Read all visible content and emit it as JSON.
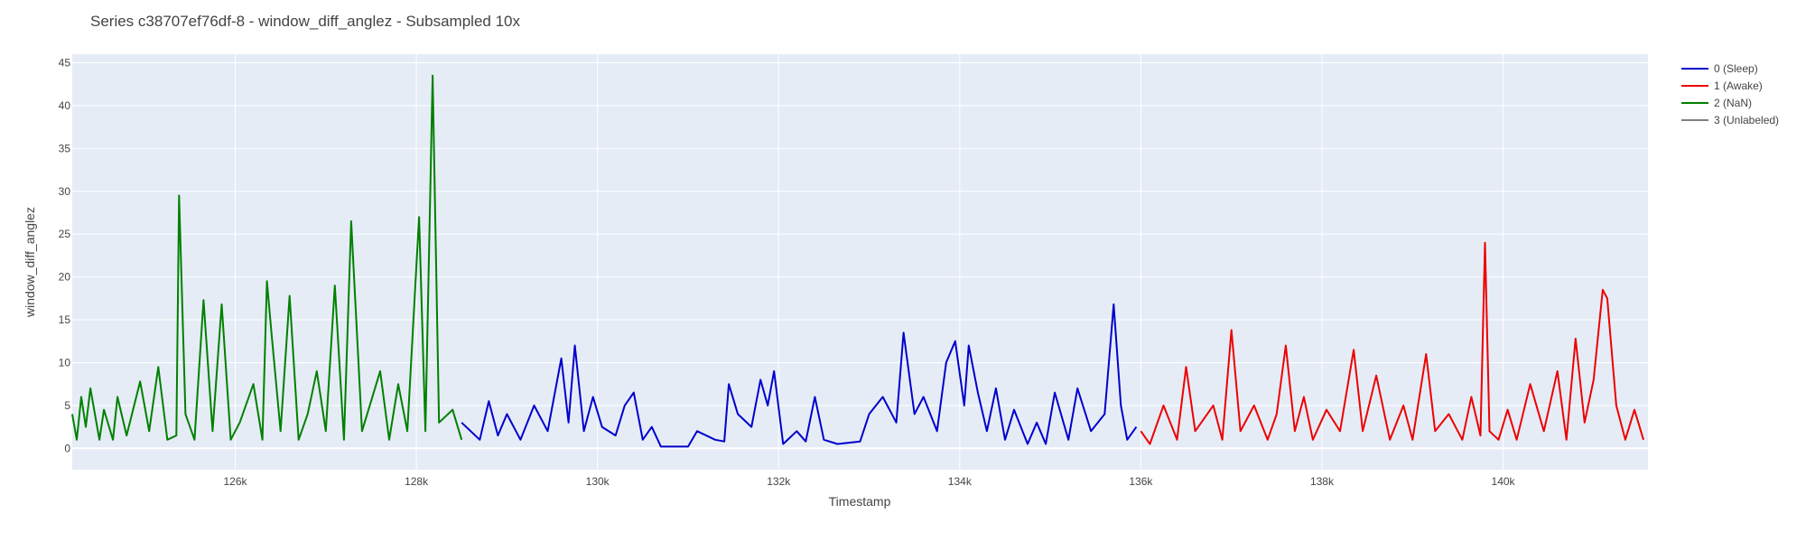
{
  "chart_data": {
    "type": "line",
    "title": "Series c38707ef76df-8 - window_diff_anglez - Subsampled 10x",
    "xlabel": "Timestamp",
    "ylabel": "window_diff_anglez",
    "xlim": [
      124200,
      141600
    ],
    "ylim": [
      -2.5,
      46
    ],
    "x_ticks": [
      126000,
      128000,
      130000,
      132000,
      134000,
      136000,
      138000,
      140000
    ],
    "x_tick_labels": [
      "126k",
      "128k",
      "130k",
      "132k",
      "134k",
      "136k",
      "138k",
      "140k"
    ],
    "y_ticks": [
      0,
      5,
      10,
      15,
      20,
      25,
      30,
      35,
      40,
      45
    ],
    "y_tick_labels": [
      "0",
      "5",
      "10",
      "15",
      "20",
      "25",
      "30",
      "35",
      "40",
      "45"
    ],
    "grid": true,
    "legend_position": "top-right",
    "series": [
      {
        "name": "0 (Sleep)",
        "color": "#0000cc",
        "points": [
          [
            128500,
            3
          ],
          [
            128700,
            1
          ],
          [
            128800,
            5.5
          ],
          [
            128900,
            1.5
          ],
          [
            129000,
            4
          ],
          [
            129150,
            1
          ],
          [
            129300,
            5
          ],
          [
            129450,
            2
          ],
          [
            129600,
            10.5
          ],
          [
            129680,
            3
          ],
          [
            129750,
            12
          ],
          [
            129850,
            2
          ],
          [
            129950,
            6
          ],
          [
            130050,
            2.5
          ],
          [
            130200,
            1.5
          ],
          [
            130300,
            5
          ],
          [
            130400,
            6.5
          ],
          [
            130500,
            1
          ],
          [
            130600,
            2.5
          ],
          [
            130700,
            0.2
          ],
          [
            131000,
            0.2
          ],
          [
            131100,
            2
          ],
          [
            131300,
            1
          ],
          [
            131400,
            0.8
          ],
          [
            131450,
            7.5
          ],
          [
            131550,
            4
          ],
          [
            131700,
            2.5
          ],
          [
            131800,
            8
          ],
          [
            131880,
            5
          ],
          [
            131950,
            9
          ],
          [
            132050,
            0.5
          ],
          [
            132200,
            2
          ],
          [
            132300,
            0.8
          ],
          [
            132400,
            6
          ],
          [
            132500,
            1
          ],
          [
            132650,
            0.5
          ],
          [
            132900,
            0.8
          ],
          [
            133000,
            4
          ],
          [
            133150,
            6
          ],
          [
            133300,
            3
          ],
          [
            133380,
            13.5
          ],
          [
            133500,
            4
          ],
          [
            133600,
            6
          ],
          [
            133750,
            2
          ],
          [
            133850,
            10
          ],
          [
            133950,
            12.5
          ],
          [
            134050,
            5
          ],
          [
            134100,
            12
          ],
          [
            134200,
            6.5
          ],
          [
            134300,
            2
          ],
          [
            134400,
            7
          ],
          [
            134500,
            1
          ],
          [
            134600,
            4.5
          ],
          [
            134750,
            0.5
          ],
          [
            134850,
            3
          ],
          [
            134950,
            0.5
          ],
          [
            135050,
            6.5
          ],
          [
            135200,
            1
          ],
          [
            135300,
            7
          ],
          [
            135450,
            2
          ],
          [
            135600,
            4
          ],
          [
            135700,
            16.8
          ],
          [
            135780,
            5
          ],
          [
            135850,
            1
          ],
          [
            135950,
            2.5
          ]
        ]
      },
      {
        "name": "1 (Awake)",
        "color": "#ee0000",
        "points": [
          [
            136000,
            2
          ],
          [
            136100,
            0.5
          ],
          [
            136250,
            5
          ],
          [
            136400,
            1
          ],
          [
            136500,
            9.5
          ],
          [
            136600,
            2
          ],
          [
            136800,
            5
          ],
          [
            136900,
            1
          ],
          [
            137000,
            13.8
          ],
          [
            137100,
            2
          ],
          [
            137250,
            5
          ],
          [
            137400,
            1
          ],
          [
            137500,
            4
          ],
          [
            137600,
            12
          ],
          [
            137700,
            2
          ],
          [
            137800,
            6
          ],
          [
            137900,
            1
          ],
          [
            138050,
            4.5
          ],
          [
            138200,
            2
          ],
          [
            138350,
            11.5
          ],
          [
            138450,
            2
          ],
          [
            138600,
            8.5
          ],
          [
            138750,
            1
          ],
          [
            138900,
            5
          ],
          [
            139000,
            1
          ],
          [
            139150,
            11
          ],
          [
            139250,
            2
          ],
          [
            139400,
            4
          ],
          [
            139550,
            1
          ],
          [
            139650,
            6
          ],
          [
            139750,
            1.5
          ],
          [
            139800,
            24
          ],
          [
            139850,
            2
          ],
          [
            139950,
            1
          ],
          [
            140050,
            4.5
          ],
          [
            140150,
            1
          ],
          [
            140300,
            7.5
          ],
          [
            140450,
            2
          ],
          [
            140600,
            9
          ],
          [
            140700,
            1
          ],
          [
            140800,
            12.8
          ],
          [
            140900,
            3
          ],
          [
            141000,
            8
          ],
          [
            141100,
            18.5
          ],
          [
            141150,
            17.5
          ],
          [
            141250,
            5
          ],
          [
            141350,
            1
          ],
          [
            141450,
            4.5
          ],
          [
            141550,
            1
          ]
        ]
      },
      {
        "name": "2 (NaN)",
        "color": "#008000",
        "points": [
          [
            124200,
            4
          ],
          [
            124250,
            1
          ],
          [
            124300,
            6
          ],
          [
            124350,
            2.5
          ],
          [
            124400,
            7
          ],
          [
            124500,
            1
          ],
          [
            124550,
            4.5
          ],
          [
            124650,
            1
          ],
          [
            124700,
            6
          ],
          [
            124800,
            1.5
          ],
          [
            124950,
            7.8
          ],
          [
            125050,
            2
          ],
          [
            125150,
            9.5
          ],
          [
            125250,
            1
          ],
          [
            125350,
            1.5
          ],
          [
            125380,
            29.5
          ],
          [
            125450,
            4
          ],
          [
            125550,
            1
          ],
          [
            125650,
            17.3
          ],
          [
            125750,
            2
          ],
          [
            125850,
            16.8
          ],
          [
            125950,
            1
          ],
          [
            126050,
            3
          ],
          [
            126200,
            7.5
          ],
          [
            126300,
            1
          ],
          [
            126350,
            19.5
          ],
          [
            126400,
            13.5
          ],
          [
            126500,
            2
          ],
          [
            126600,
            17.8
          ],
          [
            126700,
            1
          ],
          [
            126800,
            4
          ],
          [
            126900,
            9
          ],
          [
            127000,
            2
          ],
          [
            127100,
            19
          ],
          [
            127200,
            1
          ],
          [
            127280,
            26.5
          ],
          [
            127400,
            2
          ],
          [
            127600,
            9
          ],
          [
            127700,
            1
          ],
          [
            127800,
            7.5
          ],
          [
            127900,
            2
          ],
          [
            128030,
            27
          ],
          [
            128100,
            2
          ],
          [
            128180,
            43.5
          ],
          [
            128250,
            3
          ],
          [
            128400,
            4.5
          ],
          [
            128500,
            1
          ]
        ]
      },
      {
        "name": "3 (Unlabeled)",
        "color": "#808080",
        "points": []
      }
    ]
  }
}
